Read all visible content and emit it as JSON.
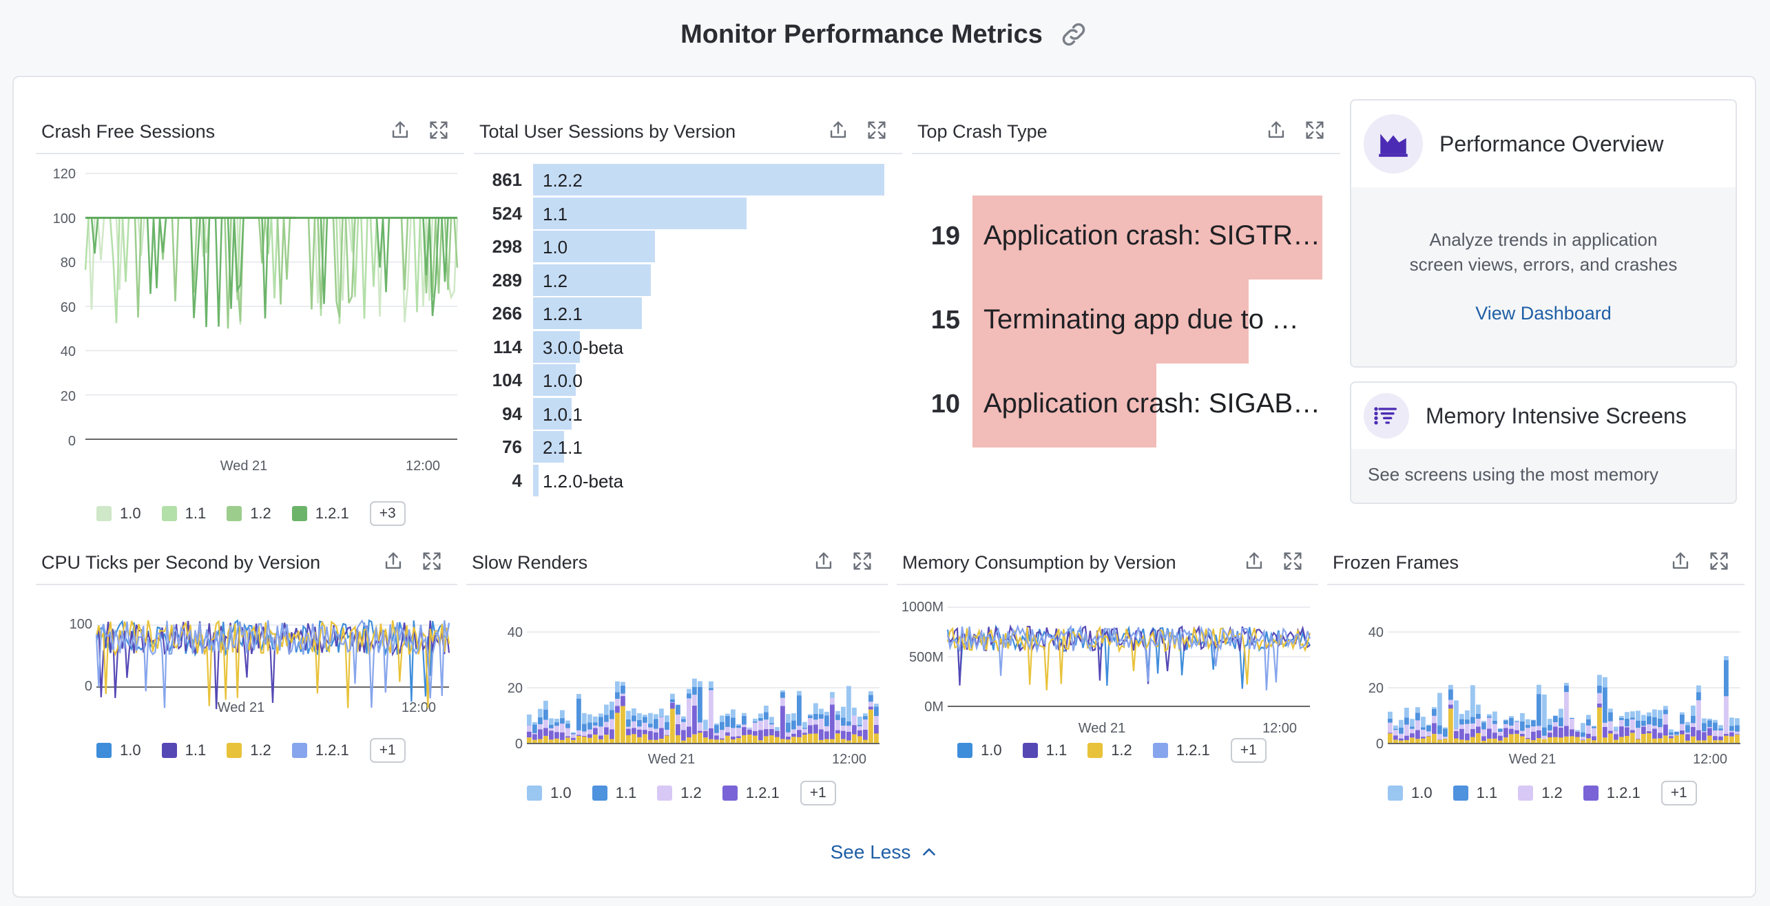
{
  "page": {
    "title": "Monitor Performance Metrics"
  },
  "widgets": {
    "crash_free": {
      "title": "Crash Free Sessions",
      "y_ticks": [
        "120",
        "100",
        "80",
        "60",
        "40",
        "20",
        "0"
      ],
      "x_ticks": [
        "Wed 21",
        "12:00"
      ],
      "legend": [
        "1.0",
        "1.1",
        "1.2",
        "1.2.1"
      ],
      "legend_colors": [
        "#cfe8c7",
        "#b3dfa8",
        "#9ccd8d",
        "#6bb46a"
      ],
      "more": "+3"
    },
    "sessions": {
      "title": "Total User Sessions by Version"
    },
    "top_crash": {
      "title": "Top Crash Type"
    },
    "performance_overview": {
      "title": "Performance Overview",
      "description_line1": "Analyze trends in application",
      "description_line2": "screen views, errors, and crashes",
      "link": "View Dashboard"
    },
    "memory_screens": {
      "title": "Memory Intensive Screens",
      "description": "See screens using the most memory"
    },
    "cpu": {
      "title": "CPU Ticks per Second by Version",
      "y_ticks": [
        "100",
        "0"
      ],
      "x_ticks": [
        "Wed 21",
        "12:00"
      ],
      "legend": [
        "1.0",
        "1.1",
        "1.2",
        "1.2.1"
      ],
      "legend_colors": [
        "#3e8ddb",
        "#5548b5",
        "#e8c23a",
        "#86a5ec"
      ],
      "more": "+1"
    },
    "slow_renders": {
      "title": "Slow Renders",
      "y_ticks": [
        "40",
        "20",
        "0"
      ],
      "x_ticks": [
        "Wed 21",
        "12:00"
      ],
      "legend": [
        "1.0",
        "1.1",
        "1.2",
        "1.2.1"
      ],
      "legend_colors": [
        "#9ac6f2",
        "#4f92de",
        "#d8c8f5",
        "#7a63d6"
      ],
      "more": "+1"
    },
    "memory": {
      "title": "Memory Consumption by Version",
      "y_ticks": [
        "1000M",
        "500M",
        "0M"
      ],
      "x_ticks": [
        "Wed 21",
        "12:00"
      ],
      "legend": [
        "1.0",
        "1.1",
        "1.2",
        "1.2.1"
      ],
      "legend_colors": [
        "#3e8ddb",
        "#5548b5",
        "#e8c23a",
        "#86a5ec"
      ],
      "more": "+1"
    },
    "frozen": {
      "title": "Frozen Frames",
      "y_ticks": [
        "40",
        "20",
        "0"
      ],
      "x_ticks": [
        "Wed 21",
        "12:00"
      ],
      "legend": [
        "1.0",
        "1.1",
        "1.2",
        "1.2.1"
      ],
      "legend_colors": [
        "#9ac6f2",
        "#4f92de",
        "#d8c8f5",
        "#7a63d6"
      ],
      "more": "+1"
    }
  },
  "see_less": "See Less",
  "chart_data": [
    {
      "type": "bar",
      "title": "Total User Sessions by Version",
      "orientation": "horizontal",
      "categories": [
        "1.2.2",
        "1.1",
        "1.0",
        "1.2",
        "1.2.1",
        "3.0.0-beta",
        "1.0.0",
        "1.0.1",
        "2.1.1",
        "1.2.0-beta"
      ],
      "values": [
        861,
        524,
        298,
        289,
        266,
        114,
        104,
        94,
        76,
        4
      ]
    },
    {
      "type": "bar",
      "title": "Top Crash Type",
      "orientation": "horizontal",
      "categories": [
        "Application crash: SIGTR…",
        "Terminating app due to …",
        "Application crash: SIGAB…"
      ],
      "values": [
        19,
        15,
        10
      ]
    }
  ]
}
